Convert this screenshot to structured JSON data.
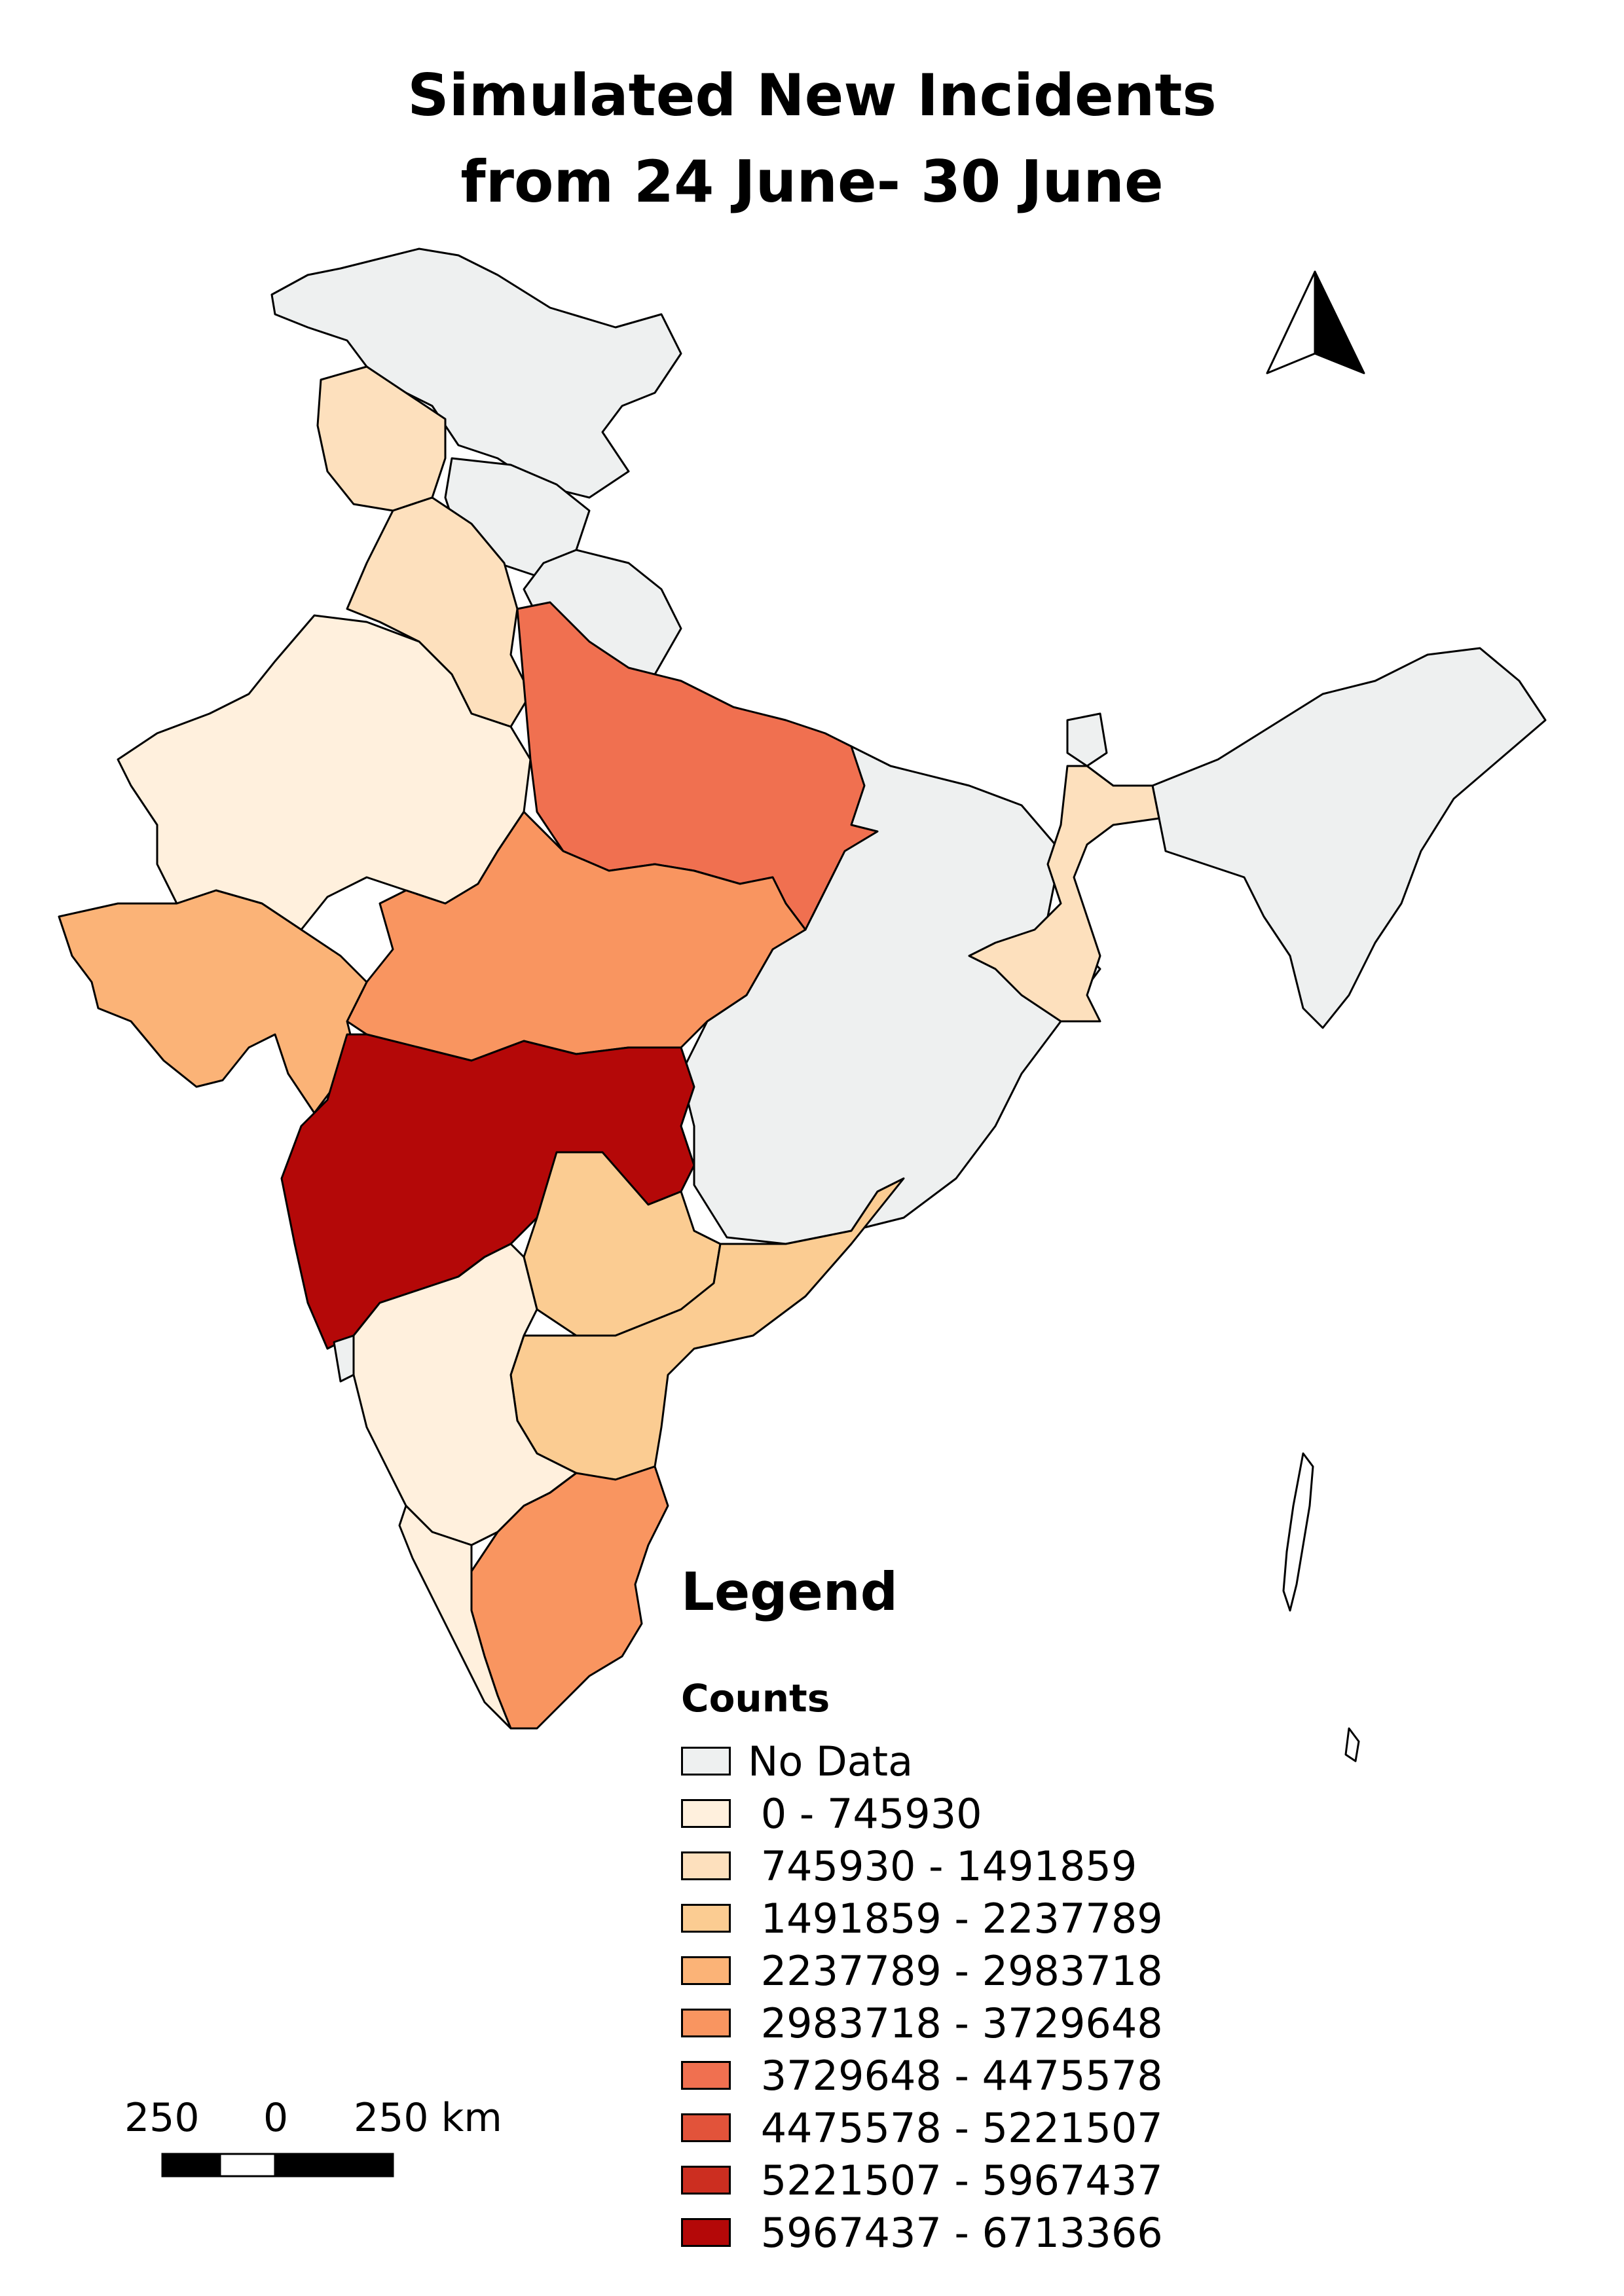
{
  "title": {
    "line1": "Simulated New Incidents",
    "line2": "from 24 June- 30 June"
  },
  "north_arrow": {
    "icon": "north-arrow-icon"
  },
  "legend": {
    "heading": "Legend",
    "subheading": "Counts",
    "items": [
      {
        "label": "No Data",
        "color": "#eef0f0"
      },
      {
        "label": " 0 - 745930",
        "color": "#fff0dd"
      },
      {
        "label": " 745930 - 1491859",
        "color": "#fde0bd"
      },
      {
        "label": " 1491859 - 2237789",
        "color": "#fbcc92"
      },
      {
        "label": " 2237789 - 2983718",
        "color": "#fbb377"
      },
      {
        "label": " 2983718 - 3729648",
        "color": "#f99560"
      },
      {
        "label": " 3729648 - 4475578",
        "color": "#f07050"
      },
      {
        "label": " 4475578 - 5221507",
        "color": "#e2533a"
      },
      {
        "label": " 5221507 - 5967437",
        "color": "#cc2e20"
      },
      {
        "label": " 5967437 - 6713366",
        "color": "#b40808"
      }
    ]
  },
  "scale_bar": {
    "labels": [
      "250",
      "0",
      "250 km"
    ]
  }
}
